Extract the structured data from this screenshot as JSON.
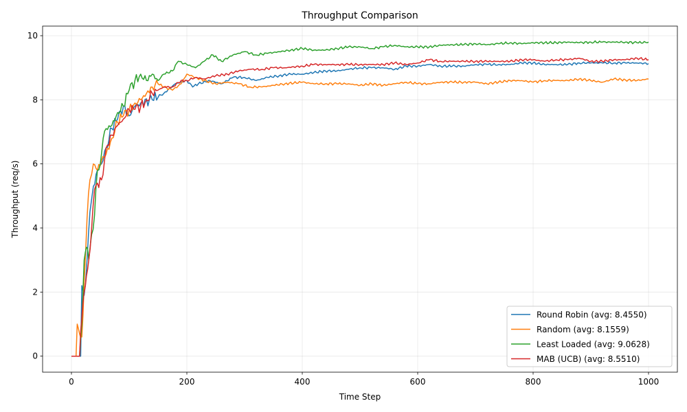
{
  "chart_data": {
    "type": "line",
    "title": "Throughput Comparison",
    "xlabel": "Time Step",
    "ylabel": "Throughput (req/s)",
    "xlim": [
      -50,
      1050
    ],
    "ylim": [
      -0.5,
      10.3
    ],
    "xticks": [
      0,
      200,
      400,
      600,
      800,
      1000
    ],
    "yticks": [
      0,
      2,
      4,
      6,
      8,
      10
    ],
    "grid": true,
    "legend_position": "lower-right",
    "series": [
      {
        "name": "Round Robin (avg: 8.4550)",
        "color": "#1f77b4",
        "points": [
          [
            0,
            0
          ],
          [
            12,
            0
          ],
          [
            16,
            0
          ],
          [
            18,
            2.2
          ],
          [
            22,
            1.9
          ],
          [
            27,
            3.0
          ],
          [
            32,
            4.5
          ],
          [
            38,
            5.3
          ],
          [
            45,
            5.8
          ],
          [
            52,
            6.0
          ],
          [
            60,
            6.5
          ],
          [
            70,
            7.1
          ],
          [
            80,
            7.4
          ],
          [
            90,
            7.8
          ],
          [
            100,
            7.5
          ],
          [
            110,
            7.8
          ],
          [
            120,
            7.9
          ],
          [
            140,
            8.0
          ],
          [
            160,
            8.2
          ],
          [
            180,
            8.5
          ],
          [
            200,
            8.6
          ],
          [
            210,
            8.4
          ],
          [
            220,
            8.5
          ],
          [
            240,
            8.6
          ],
          [
            260,
            8.5
          ],
          [
            280,
            8.7
          ],
          [
            300,
            8.7
          ],
          [
            320,
            8.6
          ],
          [
            340,
            8.7
          ],
          [
            360,
            8.75
          ],
          [
            380,
            8.8
          ],
          [
            400,
            8.8
          ],
          [
            420,
            8.85
          ],
          [
            440,
            8.9
          ],
          [
            460,
            8.9
          ],
          [
            480,
            8.95
          ],
          [
            500,
            9.0
          ],
          [
            520,
            9.0
          ],
          [
            540,
            9.0
          ],
          [
            560,
            8.95
          ],
          [
            580,
            9.05
          ],
          [
            600,
            9.05
          ],
          [
            620,
            9.1
          ],
          [
            640,
            9.05
          ],
          [
            660,
            9.05
          ],
          [
            680,
            9.05
          ],
          [
            700,
            9.1
          ],
          [
            720,
            9.1
          ],
          [
            740,
            9.1
          ],
          [
            760,
            9.1
          ],
          [
            780,
            9.15
          ],
          [
            800,
            9.15
          ],
          [
            820,
            9.1
          ],
          [
            840,
            9.1
          ],
          [
            860,
            9.1
          ],
          [
            880,
            9.15
          ],
          [
            900,
            9.15
          ],
          [
            920,
            9.15
          ],
          [
            940,
            9.15
          ],
          [
            960,
            9.15
          ],
          [
            980,
            9.15
          ],
          [
            1000,
            9.13
          ]
        ]
      },
      {
        "name": "Random (avg: 8.1559)",
        "color": "#ff7f0e",
        "points": [
          [
            0,
            0
          ],
          [
            8,
            0
          ],
          [
            10,
            1.0
          ],
          [
            14,
            0.7
          ],
          [
            18,
            0.6
          ],
          [
            22,
            2.3
          ],
          [
            27,
            4.3
          ],
          [
            32,
            5.5
          ],
          [
            38,
            6.0
          ],
          [
            45,
            5.8
          ],
          [
            52,
            6.1
          ],
          [
            60,
            6.3
          ],
          [
            70,
            6.8
          ],
          [
            80,
            7.3
          ],
          [
            90,
            7.5
          ],
          [
            100,
            7.7
          ],
          [
            110,
            7.9
          ],
          [
            120,
            8.0
          ],
          [
            130,
            8.2
          ],
          [
            140,
            8.4
          ],
          [
            150,
            8.5
          ],
          [
            160,
            8.4
          ],
          [
            175,
            8.3
          ],
          [
            190,
            8.5
          ],
          [
            200,
            8.8
          ],
          [
            215,
            8.7
          ],
          [
            230,
            8.6
          ],
          [
            250,
            8.5
          ],
          [
            270,
            8.55
          ],
          [
            290,
            8.5
          ],
          [
            310,
            8.4
          ],
          [
            330,
            8.4
          ],
          [
            350,
            8.45
          ],
          [
            370,
            8.5
          ],
          [
            400,
            8.55
          ],
          [
            420,
            8.5
          ],
          [
            440,
            8.5
          ],
          [
            460,
            8.5
          ],
          [
            480,
            8.5
          ],
          [
            500,
            8.45
          ],
          [
            520,
            8.5
          ],
          [
            540,
            8.45
          ],
          [
            560,
            8.5
          ],
          [
            580,
            8.55
          ],
          [
            600,
            8.5
          ],
          [
            620,
            8.5
          ],
          [
            640,
            8.55
          ],
          [
            660,
            8.55
          ],
          [
            680,
            8.55
          ],
          [
            700,
            8.55
          ],
          [
            720,
            8.5
          ],
          [
            740,
            8.55
          ],
          [
            760,
            8.6
          ],
          [
            780,
            8.6
          ],
          [
            800,
            8.55
          ],
          [
            820,
            8.6
          ],
          [
            840,
            8.6
          ],
          [
            860,
            8.6
          ],
          [
            880,
            8.65
          ],
          [
            900,
            8.6
          ],
          [
            920,
            8.55
          ],
          [
            940,
            8.65
          ],
          [
            960,
            8.62
          ],
          [
            980,
            8.6
          ],
          [
            1000,
            8.65
          ]
        ]
      },
      {
        "name": "Least Loaded (avg: 9.0628)",
        "color": "#2ca02c",
        "points": [
          [
            0,
            0
          ],
          [
            14,
            0
          ],
          [
            18,
            1.0
          ],
          [
            22,
            3.0
          ],
          [
            26,
            3.4
          ],
          [
            30,
            3.0
          ],
          [
            35,
            3.8
          ],
          [
            40,
            4.4
          ],
          [
            45,
            5.8
          ],
          [
            50,
            6.0
          ],
          [
            55,
            6.8
          ],
          [
            60,
            7.1
          ],
          [
            70,
            7.2
          ],
          [
            80,
            7.6
          ],
          [
            90,
            7.8
          ],
          [
            100,
            8.3
          ],
          [
            110,
            8.6
          ],
          [
            120,
            8.8
          ],
          [
            130,
            8.6
          ],
          [
            140,
            8.8
          ],
          [
            150,
            8.6
          ],
          [
            160,
            8.8
          ],
          [
            175,
            8.9
          ],
          [
            185,
            9.2
          ],
          [
            200,
            9.1
          ],
          [
            215,
            9.0
          ],
          [
            230,
            9.2
          ],
          [
            245,
            9.4
          ],
          [
            260,
            9.2
          ],
          [
            280,
            9.4
          ],
          [
            300,
            9.5
          ],
          [
            320,
            9.4
          ],
          [
            340,
            9.45
          ],
          [
            360,
            9.5
          ],
          [
            380,
            9.55
          ],
          [
            400,
            9.6
          ],
          [
            420,
            9.55
          ],
          [
            440,
            9.55
          ],
          [
            460,
            9.6
          ],
          [
            480,
            9.65
          ],
          [
            500,
            9.65
          ],
          [
            520,
            9.6
          ],
          [
            540,
            9.65
          ],
          [
            560,
            9.7
          ],
          [
            580,
            9.65
          ],
          [
            600,
            9.65
          ],
          [
            620,
            9.65
          ],
          [
            640,
            9.7
          ],
          [
            660,
            9.72
          ],
          [
            680,
            9.72
          ],
          [
            700,
            9.75
          ],
          [
            720,
            9.72
          ],
          [
            740,
            9.75
          ],
          [
            760,
            9.78
          ],
          [
            780,
            9.75
          ],
          [
            800,
            9.78
          ],
          [
            820,
            9.78
          ],
          [
            840,
            9.78
          ],
          [
            860,
            9.8
          ],
          [
            880,
            9.78
          ],
          [
            900,
            9.8
          ],
          [
            920,
            9.8
          ],
          [
            940,
            9.8
          ],
          [
            960,
            9.8
          ],
          [
            980,
            9.78
          ],
          [
            1000,
            9.8
          ]
        ]
      },
      {
        "name": "MAB (UCB) (avg: 8.5510)",
        "color": "#d62728",
        "points": [
          [
            0,
            0
          ],
          [
            14,
            0
          ],
          [
            18,
            1.2
          ],
          [
            22,
            2.0
          ],
          [
            26,
            2.5
          ],
          [
            30,
            3.0
          ],
          [
            35,
            4.0
          ],
          [
            40,
            5.2
          ],
          [
            45,
            5.4
          ],
          [
            52,
            5.5
          ],
          [
            60,
            6.5
          ],
          [
            70,
            6.9
          ],
          [
            80,
            7.2
          ],
          [
            90,
            7.4
          ],
          [
            100,
            7.7
          ],
          [
            110,
            7.7
          ],
          [
            120,
            7.8
          ],
          [
            130,
            8.0
          ],
          [
            140,
            8.2
          ],
          [
            150,
            8.3
          ],
          [
            160,
            8.4
          ],
          [
            175,
            8.4
          ],
          [
            190,
            8.6
          ],
          [
            200,
            8.6
          ],
          [
            215,
            8.7
          ],
          [
            230,
            8.65
          ],
          [
            250,
            8.75
          ],
          [
            270,
            8.8
          ],
          [
            290,
            8.9
          ],
          [
            310,
            8.95
          ],
          [
            330,
            8.95
          ],
          [
            350,
            9.0
          ],
          [
            370,
            9.0
          ],
          [
            400,
            9.05
          ],
          [
            420,
            9.1
          ],
          [
            440,
            9.1
          ],
          [
            460,
            9.1
          ],
          [
            480,
            9.1
          ],
          [
            500,
            9.1
          ],
          [
            520,
            9.1
          ],
          [
            540,
            9.1
          ],
          [
            560,
            9.15
          ],
          [
            580,
            9.1
          ],
          [
            600,
            9.15
          ],
          [
            620,
            9.25
          ],
          [
            640,
            9.2
          ],
          [
            660,
            9.2
          ],
          [
            680,
            9.2
          ],
          [
            700,
            9.2
          ],
          [
            720,
            9.2
          ],
          [
            740,
            9.2
          ],
          [
            760,
            9.2
          ],
          [
            780,
            9.25
          ],
          [
            800,
            9.25
          ],
          [
            820,
            9.2
          ],
          [
            840,
            9.25
          ],
          [
            860,
            9.25
          ],
          [
            880,
            9.3
          ],
          [
            900,
            9.2
          ],
          [
            920,
            9.2
          ],
          [
            940,
            9.25
          ],
          [
            960,
            9.25
          ],
          [
            980,
            9.3
          ],
          [
            1000,
            9.25
          ]
        ]
      }
    ]
  }
}
